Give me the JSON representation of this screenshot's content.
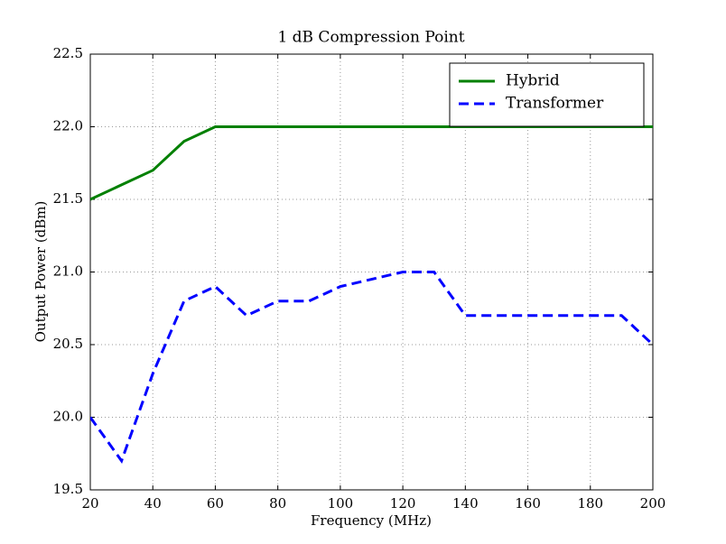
{
  "chart_data": {
    "type": "line",
    "title": "1 dB Compression Point",
    "x_label": "Frequency (MHz)",
    "y_label": "Output Power (dBm)",
    "x": [
      20,
      30,
      40,
      50,
      60,
      70,
      80,
      90,
      100,
      110,
      120,
      130,
      140,
      150,
      160,
      170,
      180,
      190,
      200
    ],
    "series": [
      {
        "name": "Hybrid",
        "color": "#008000",
        "dash": "solid",
        "values": [
          21.5,
          21.6,
          21.7,
          21.9,
          22.0,
          22.0,
          22.0,
          22.0,
          22.0,
          22.0,
          22.0,
          22.0,
          22.0,
          22.0,
          22.0,
          22.0,
          22.0,
          22.0,
          22.0
        ]
      },
      {
        "name": "Transformer",
        "color": "#0000ff",
        "dash": "dashed",
        "values": [
          20.0,
          19.7,
          20.3,
          20.8,
          20.9,
          20.7,
          20.8,
          20.8,
          20.9,
          20.95,
          21.0,
          21.0,
          20.7,
          20.7,
          20.7,
          20.7,
          20.7,
          20.7,
          20.5
        ]
      }
    ],
    "xlim": [
      20,
      200
    ],
    "xticks": [
      20,
      40,
      60,
      80,
      100,
      120,
      140,
      160,
      180,
      200
    ],
    "ylim": [
      19.5,
      22.5
    ],
    "yticks": [
      19.5,
      {
        "value": 20,
        "label": "20.0"
      },
      20.5,
      {
        "value": 21,
        "label": "21.0"
      },
      21.5,
      {
        "value": 22,
        "label": "22.0"
      },
      22.5
    ],
    "grid": true,
    "legend": "upper right"
  }
}
